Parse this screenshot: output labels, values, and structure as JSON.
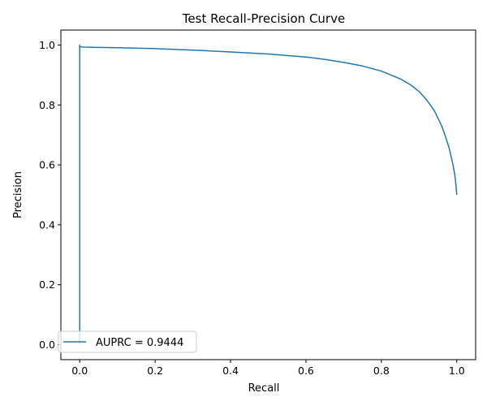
{
  "chart_data": {
    "type": "line",
    "title": "Test Recall-Precision Curve",
    "xlabel": "Recall",
    "ylabel": "Precision",
    "xlim": [
      -0.05,
      1.05
    ],
    "ylim": [
      -0.05,
      1.05
    ],
    "xticks": [
      0.0,
      0.2,
      0.4,
      0.6,
      0.8,
      1.0
    ],
    "xtick_labels": [
      "0.0",
      "0.2",
      "0.4",
      "0.6",
      "0.8",
      "1.0"
    ],
    "yticks": [
      0.0,
      0.2,
      0.4,
      0.6,
      0.8,
      1.0
    ],
    "ytick_labels": [
      "0.0",
      "0.2",
      "0.4",
      "0.6",
      "0.8",
      "1.0"
    ],
    "grid": false,
    "legend_position": "lower-left",
    "series": [
      {
        "name": "AUPRC = 0.9444",
        "color": "#1f77b4",
        "x": [
          0.0,
          0.0,
          0.0,
          0.002,
          0.01,
          0.05,
          0.1,
          0.2,
          0.3,
          0.4,
          0.5,
          0.6,
          0.65,
          0.7,
          0.75,
          0.8,
          0.85,
          0.88,
          0.9,
          0.92,
          0.94,
          0.96,
          0.97,
          0.98,
          0.99,
          0.995,
          0.998,
          1.0
        ],
        "y": [
          0.0,
          1.0,
          0.995,
          0.994,
          0.993,
          0.992,
          0.991,
          0.988,
          0.983,
          0.977,
          0.97,
          0.96,
          0.952,
          0.942,
          0.93,
          0.913,
          0.887,
          0.865,
          0.845,
          0.817,
          0.782,
          0.73,
          0.695,
          0.655,
          0.6,
          0.565,
          0.53,
          0.5
        ]
      }
    ]
  }
}
